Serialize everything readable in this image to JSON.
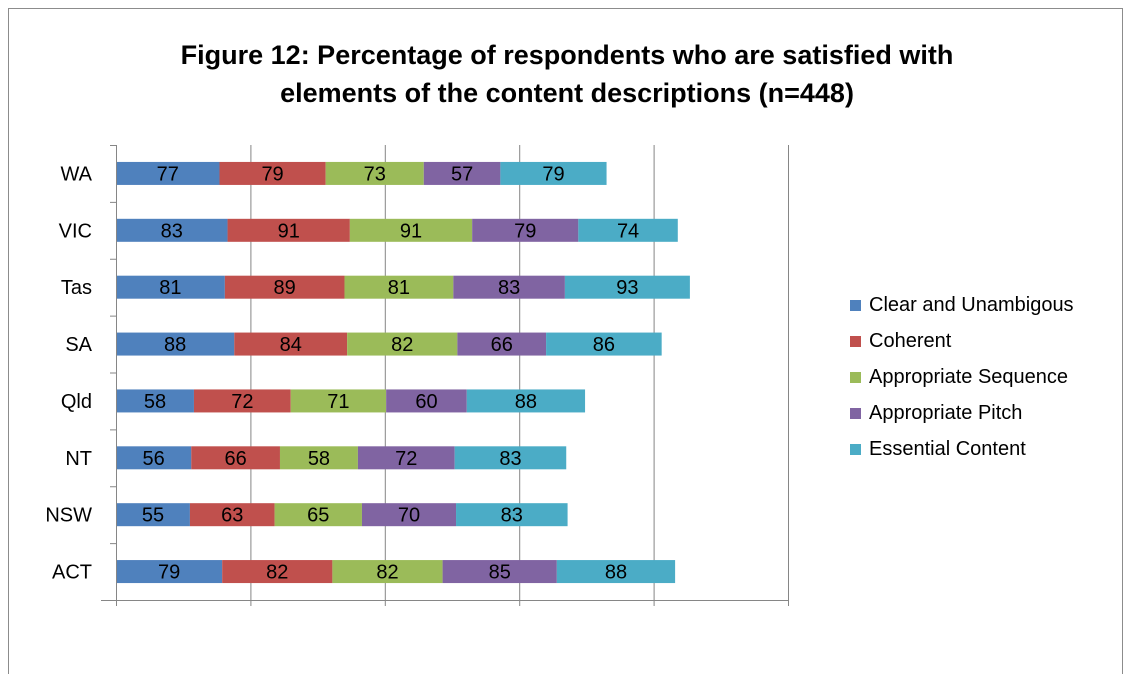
{
  "chart_data": {
    "type": "bar",
    "orientation": "horizontal",
    "stacked": true,
    "title": "Figure 12: Percentage of respondents who are satisfied with elements of the content descriptions (n=448)",
    "title_lines": [
      "Figure 12: Percentage of respondents who are satisfied with",
      "elements of the content descriptions (n=448)"
    ],
    "categories": [
      "ACT",
      "NSW",
      "NT",
      "Qld",
      "SA",
      "Tas",
      "VIC",
      "WA"
    ],
    "series": [
      {
        "name": "Clear and Unambigous",
        "color": "#4f81bd",
        "values": [
          79,
          55,
          56,
          58,
          88,
          81,
          83,
          77
        ]
      },
      {
        "name": "Coherent",
        "color": "#c0504d",
        "values": [
          82,
          63,
          66,
          72,
          84,
          89,
          91,
          79
        ]
      },
      {
        "name": "Appropriate Sequence",
        "color": "#9bbb59",
        "values": [
          82,
          65,
          58,
          71,
          82,
          81,
          91,
          73
        ]
      },
      {
        "name": "Appropriate Pitch",
        "color": "#8064a2",
        "values": [
          85,
          70,
          72,
          60,
          66,
          83,
          79,
          57
        ]
      },
      {
        "name": "Essential Content",
        "color": "#4bacc6",
        "values": [
          88,
          83,
          83,
          88,
          86,
          93,
          74,
          79
        ]
      }
    ],
    "xlim": [
      0,
      500
    ],
    "x_major_unit": 100,
    "x_tick_labels_shown": false,
    "grid": "vertical",
    "legend": "right"
  }
}
